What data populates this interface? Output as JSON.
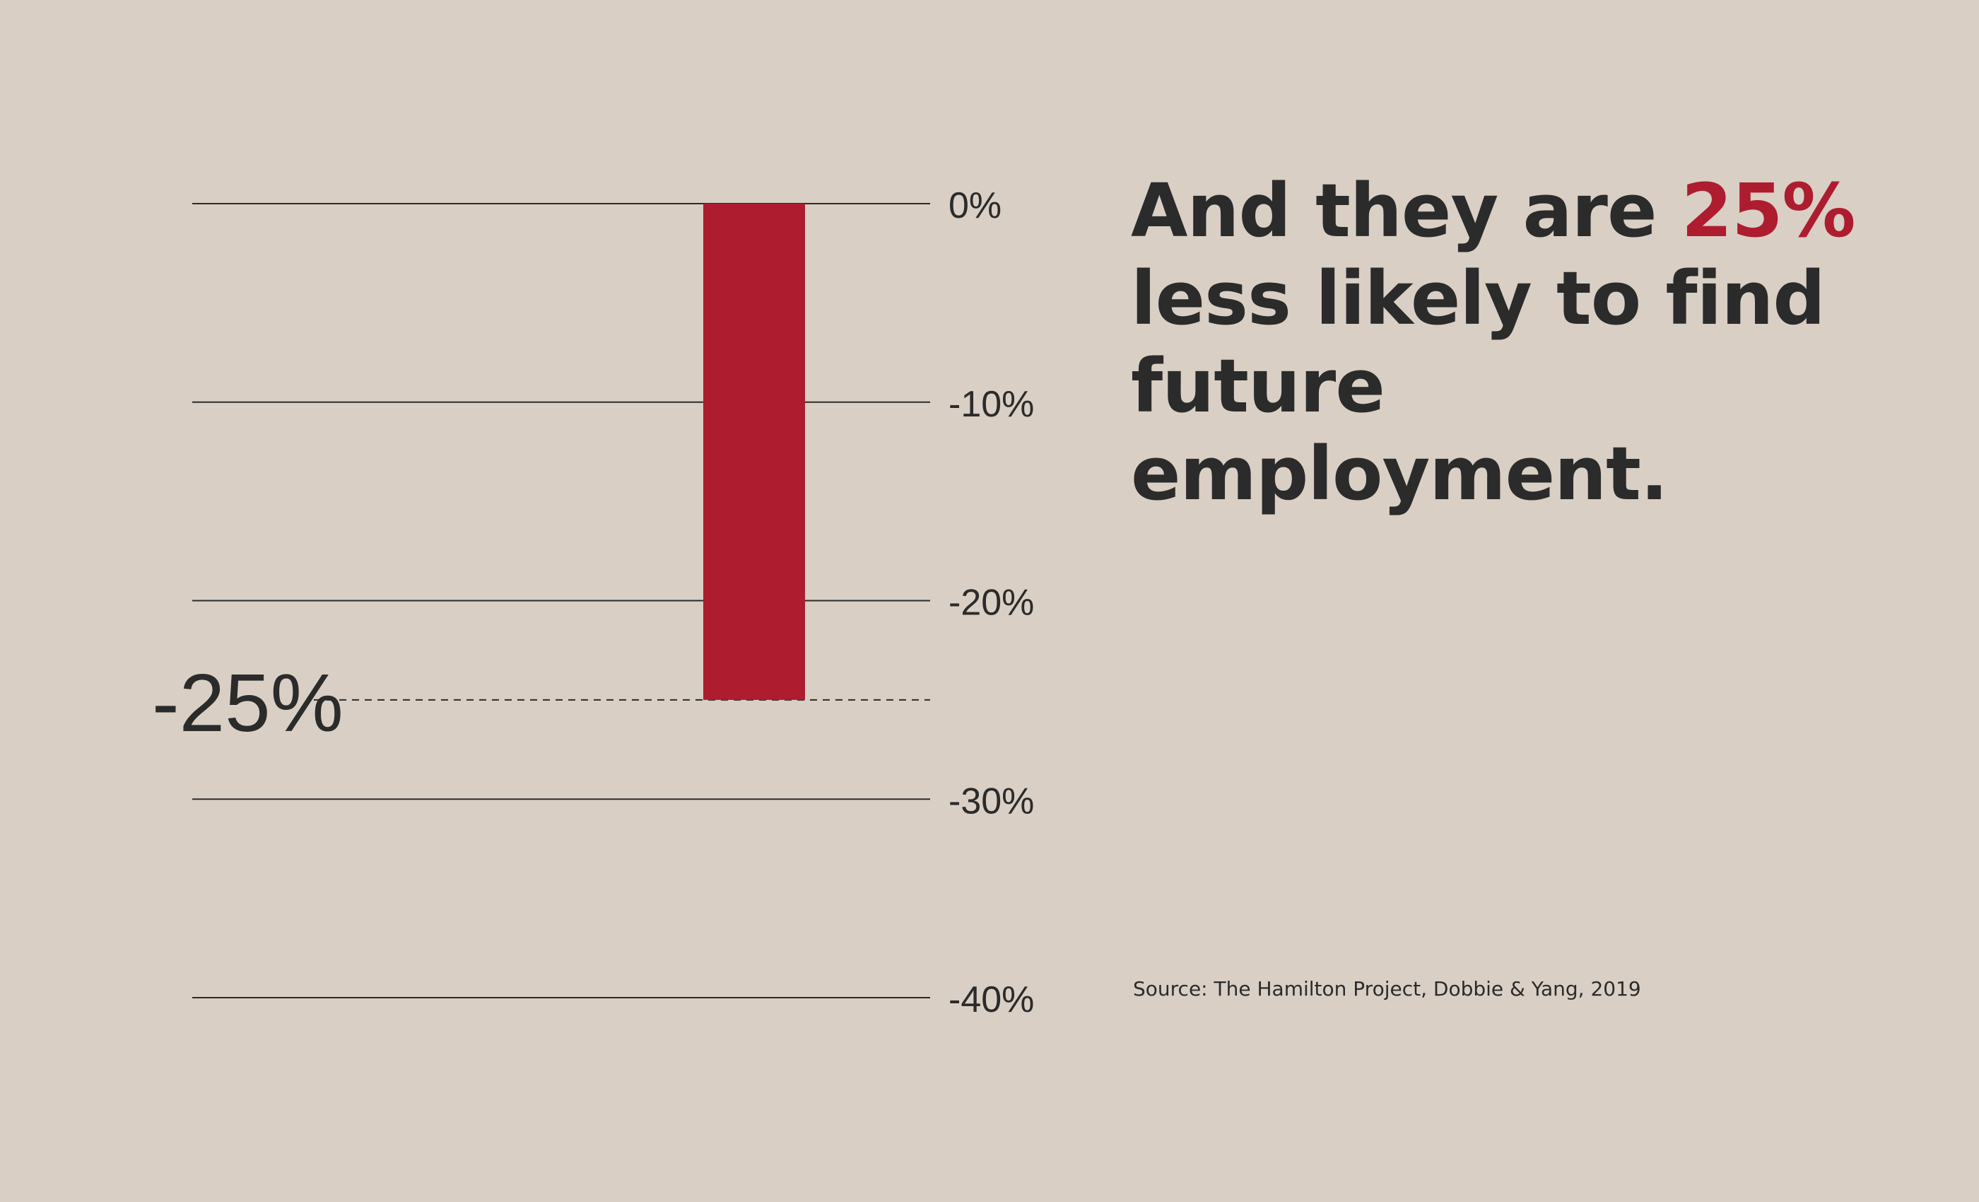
{
  "chart_data": {
    "type": "bar",
    "categories": [
      ""
    ],
    "values": [
      -25
    ],
    "ylim": [
      -40,
      0
    ],
    "yticks": [
      0,
      -10,
      -20,
      -30,
      -40
    ],
    "ytick_labels": [
      "0%",
      "-10%",
      "-20%",
      "-30%",
      "-40%"
    ],
    "highlight_value": -25,
    "highlight_label": "-25%",
    "bar_color": "#ae1c2f",
    "grid": true
  },
  "headline": {
    "pre": "And they are",
    "accent": "25%",
    "post": "less likely to find future employment."
  },
  "source": "Source: The Hamilton Project, Dobbie & Yang, 2019",
  "colors": {
    "background": "#d9cfc5",
    "accent": "#ae1c2f",
    "text": "#2b2b2b"
  }
}
